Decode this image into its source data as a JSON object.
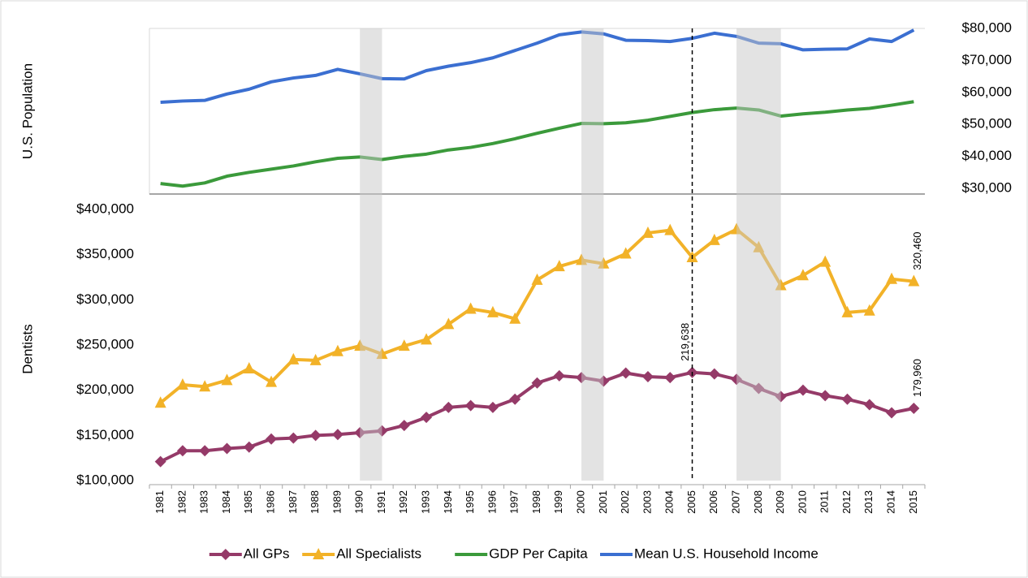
{
  "chart_data": {
    "type": "line",
    "categories": [
      "1981",
      "1982",
      "1983",
      "1984",
      "1985",
      "1986",
      "1987",
      "1988",
      "1989",
      "1990",
      "1991",
      "1992",
      "1993",
      "1994",
      "1995",
      "1996",
      "1997",
      "1998",
      "1999",
      "2000",
      "2001",
      "2002",
      "2003",
      "2004",
      "2005",
      "2006",
      "2007",
      "2008",
      "2009",
      "2010",
      "2011",
      "2012",
      "2013",
      "2014",
      "2015"
    ],
    "ylabel": "Dentists",
    "y2label": "U.S. Population",
    "ylim": [
      100000,
      400000
    ],
    "yticks": [
      {
        "value": 100000,
        "label": "$100,000"
      },
      {
        "value": 150000,
        "label": "$150,000"
      },
      {
        "value": 200000,
        "label": "$200,000"
      },
      {
        "value": 250000,
        "label": "$250,000"
      },
      {
        "value": 300000,
        "label": "$300,000"
      },
      {
        "value": 350000,
        "label": "$350,000"
      },
      {
        "value": 400000,
        "label": "$400,000"
      }
    ],
    "y2lim": [
      30000,
      80000
    ],
    "y2ticks": [
      {
        "value": 30000,
        "label": "$30,000"
      },
      {
        "value": 40000,
        "label": "$40,000"
      },
      {
        "value": 50000,
        "label": "$50,000"
      },
      {
        "value": 60000,
        "label": "$60,000"
      },
      {
        "value": 70000,
        "label": "$70,000"
      },
      {
        "value": 80000,
        "label": "$80,000"
      }
    ],
    "shaded": [
      {
        "from": "1990",
        "to": "1991"
      },
      {
        "from": "2000",
        "to": "2001"
      },
      {
        "from": "2007",
        "to": "2009"
      }
    ],
    "marker_line": "2005",
    "series": [
      {
        "name": "All GPs",
        "color": "#953a68",
        "marker": "diamond",
        "values": [
          121000,
          133000,
          133000,
          135500,
          137000,
          146000,
          147000,
          150000,
          151000,
          153000,
          155000,
          161000,
          170000,
          181000,
          183000,
          181000,
          190000,
          208000,
          216000,
          214000,
          210000,
          219000,
          215000,
          214000,
          219638,
          218000,
          212000,
          202000,
          193000,
          200000,
          194000,
          190000,
          184000,
          175000,
          179960
        ],
        "value_labels": [
          null,
          null,
          null,
          null,
          null,
          null,
          null,
          null,
          null,
          null,
          null,
          null,
          null,
          null,
          null,
          null,
          null,
          null,
          null,
          null,
          null,
          null,
          null,
          null,
          "219,638",
          null,
          null,
          null,
          null,
          null,
          null,
          null,
          null,
          null,
          "179,960"
        ]
      },
      {
        "name": "All Specialists",
        "color": "#f2b228",
        "marker": "triangle",
        "values": [
          186000,
          206000,
          204000,
          211000,
          224000,
          209000,
          234000,
          233000,
          243000,
          249000,
          240000,
          249000,
          256000,
          273000,
          290000,
          286000,
          279000,
          322000,
          337000,
          344000,
          340000,
          351000,
          374000,
          377000,
          347000,
          366000,
          378000,
          358000,
          316000,
          327000,
          342000,
          286000,
          288000,
          323000,
          320460
        ],
        "value_labels": [
          null,
          null,
          null,
          null,
          null,
          null,
          null,
          null,
          null,
          null,
          null,
          null,
          null,
          null,
          null,
          null,
          null,
          null,
          null,
          null,
          null,
          null,
          null,
          null,
          null,
          null,
          null,
          null,
          null,
          null,
          null,
          null,
          null,
          null,
          "320,460"
        ]
      },
      {
        "name": "GDP Per Capita",
        "color": "#3b9a3b",
        "axis": "y2",
        "values": [
          31500,
          30700,
          31700,
          33800,
          35000,
          36000,
          37000,
          38300,
          39400,
          39800,
          39000,
          40000,
          40700,
          42000,
          42800,
          44000,
          45500,
          47200,
          48800,
          50300,
          50200,
          50500,
          51300,
          52500,
          53700,
          54600,
          55100,
          54500,
          52600,
          53300,
          53800,
          54500,
          55000,
          56000,
          57100
        ]
      },
      {
        "name": "Mean U.S. Household Income",
        "color": "#3b6fd1",
        "axis": "y2",
        "values": [
          56900,
          57300,
          57500,
          59500,
          61000,
          63300,
          64500,
          65300,
          67200,
          65800,
          64300,
          64200,
          66800,
          68200,
          69300,
          70800,
          73100,
          75400,
          78000,
          78900,
          78300,
          76300,
          76200,
          75900,
          76900,
          78500,
          77500,
          75400,
          75200,
          73300,
          73500,
          73600,
          76700,
          75900,
          79500
        ]
      }
    ]
  }
}
